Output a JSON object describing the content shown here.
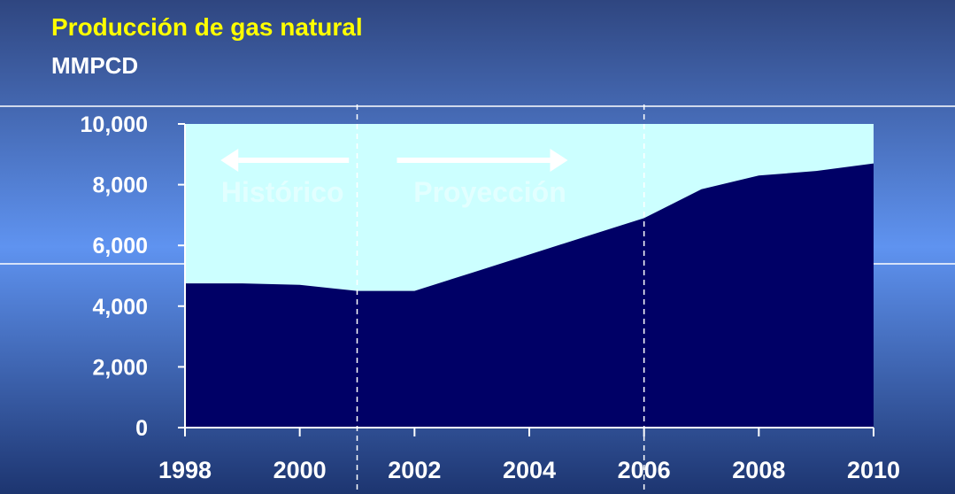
{
  "chart_data": {
    "type": "area",
    "title": "Producción de gas natural",
    "subtitle": "MMPCD",
    "x": [
      1998,
      1999,
      2000,
      2001,
      2002,
      2003,
      2004,
      2005,
      2006,
      2007,
      2008,
      2009,
      2010
    ],
    "series": [
      {
        "color": "#000066",
        "values": [
          4750,
          4750,
          4700,
          4500,
          4500,
          5100,
          5700,
          6300,
          6900,
          7850,
          8300,
          8450,
          8700
        ]
      }
    ],
    "plot_background": "#ccffff",
    "xlim": [
      1998,
      2010
    ],
    "xticks": [
      1998,
      2000,
      2002,
      2004,
      2006,
      2008,
      2010
    ],
    "ylim": [
      0,
      10000
    ],
    "yticks": [
      0,
      {
        "value": 2000,
        "label": "2,000"
      },
      {
        "value": 4000,
        "label": "4,000"
      },
      {
        "value": 6000,
        "label": "6,000"
      },
      {
        "value": 8000,
        "label": "8,000"
      },
      {
        "value": 10000,
        "label": "10,000"
      }
    ],
    "vlines": [
      2001,
      2006
    ],
    "annotations": [
      {
        "text": "Histórico",
        "direction": "left"
      },
      {
        "text": "Proyección",
        "direction": "right"
      }
    ]
  }
}
